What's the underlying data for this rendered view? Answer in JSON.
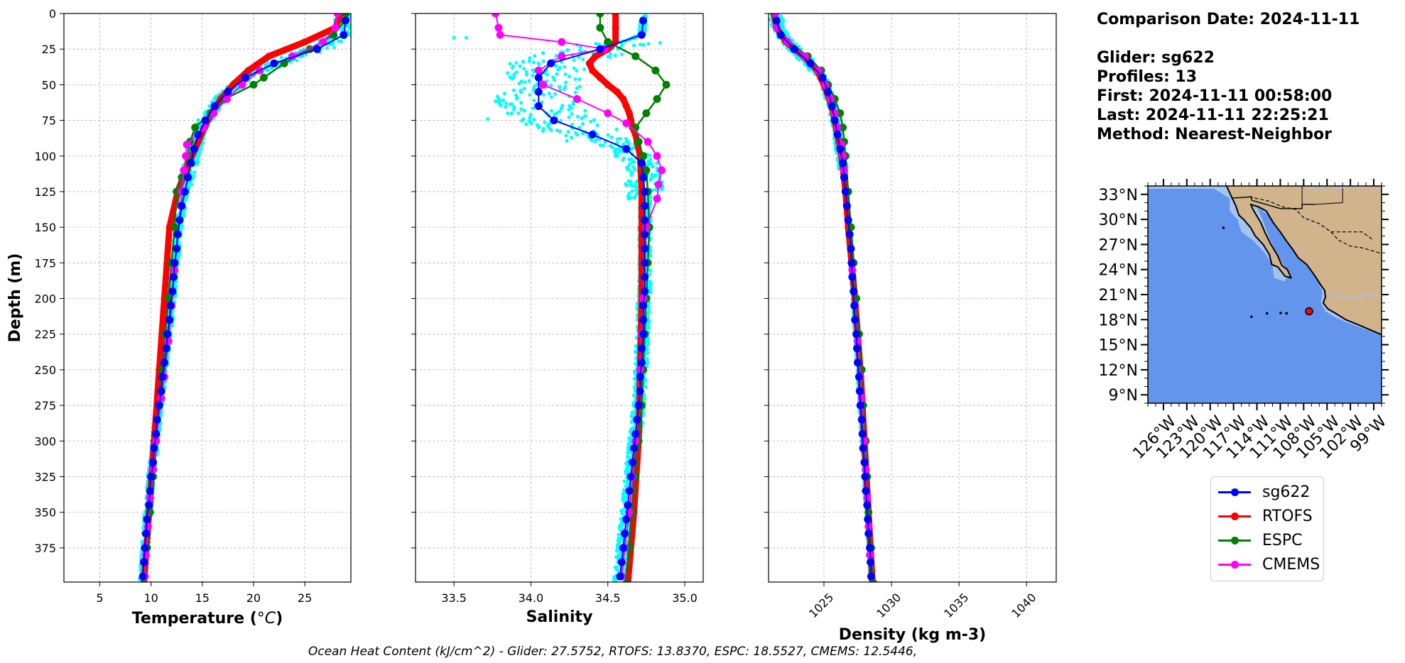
{
  "colors": {
    "sg622": "#0000ff",
    "RTOFS": "#ff0000",
    "ESPC": "#008000",
    "CMEMS": "#ff00ff",
    "raw": "#00ffff",
    "ocean": "#6495ed",
    "shelf": "#a4c4f0",
    "land": "#d2b48c"
  },
  "info": {
    "comparison_date": "Comparison Date: 2024-11-11",
    "glider": "Glider: sg622",
    "profiles": "Profiles: 13",
    "first": "First: 2024-11-11 00:58:00",
    "last": "Last: 2024-11-11 22:25:21",
    "method": "Method: Nearest-Neighbor"
  },
  "footer": "Ocean Heat Content (kJ/cm^2) - Glider: 27.5752,  RTOFS: 13.8370,  ESPC: 18.5527,  CMEMS: 12.5446,",
  "legend": [
    {
      "label": "sg622",
      "color": "#0000ff"
    },
    {
      "label": "RTOFS",
      "color": "#ff0000"
    },
    {
      "label": "ESPC",
      "color": "#008000"
    },
    {
      "label": "CMEMS",
      "color": "#ff00ff"
    }
  ],
  "chart_data": [
    {
      "type": "line",
      "xlabel": "Temperature (°C)",
      "ylabel": "Depth (m)",
      "xlim": [
        1.5,
        29.5
      ],
      "ylim": [
        399,
        0
      ],
      "xticks": [
        5,
        10,
        15,
        20,
        25
      ],
      "yticks": [
        0,
        25,
        50,
        75,
        100,
        125,
        150,
        175,
        200,
        225,
        250,
        275,
        300,
        325,
        350,
        375
      ],
      "grid": true,
      "series": [
        {
          "name": "sg622",
          "depth": [
            5,
            15,
            25,
            35,
            45,
            55,
            65,
            75,
            85,
            95,
            105,
            115,
            125,
            135,
            145,
            155,
            165,
            175,
            185,
            195,
            205,
            215,
            225,
            235,
            245,
            255,
            265,
            275,
            285,
            295,
            305,
            315,
            325,
            335,
            345,
            355,
            365,
            375,
            385,
            395
          ],
          "values": [
            29.0,
            28.8,
            26.2,
            22.0,
            19.2,
            17.5,
            16.2,
            15.3,
            14.6,
            14.2,
            13.9,
            13.6,
            13.3,
            13.0,
            12.8,
            12.6,
            12.5,
            12.3,
            12.2,
            12.1,
            11.9,
            11.8,
            11.6,
            11.5,
            11.3,
            11.1,
            11.0,
            10.8,
            10.6,
            10.5,
            10.3,
            10.2,
            10.0,
            9.9,
            9.8,
            9.6,
            9.5,
            9.4,
            9.3,
            9.2
          ]
        },
        {
          "name": "RTOFS",
          "depth": [
            0,
            10,
            20,
            30,
            40,
            50,
            60,
            70,
            80,
            90,
            100,
            110,
            125,
            150,
            200,
            250,
            300,
            350,
            400
          ],
          "values": [
            28.5,
            28.0,
            25.0,
            21.5,
            19.5,
            18.0,
            16.8,
            15.9,
            15.2,
            14.6,
            14.0,
            13.4,
            12.6,
            11.8,
            11.3,
            10.8,
            10.3,
            9.8,
            9.3
          ]
        },
        {
          "name": "ESPC",
          "depth": [
            0,
            5,
            15,
            25,
            35,
            45,
            50,
            60,
            70,
            80,
            90,
            100,
            115,
            125,
            150,
            175,
            200,
            225,
            250,
            275,
            300,
            325,
            350,
            375,
            400
          ],
          "values": [
            29.0,
            28.9,
            27.8,
            25.5,
            23.0,
            21.0,
            20.0,
            17.2,
            15.8,
            14.3,
            13.8,
            13.6,
            13.0,
            12.5,
            12.3,
            12.0,
            11.7,
            11.4,
            11.1,
            10.8,
            10.5,
            10.2,
            9.9,
            9.6,
            9.3
          ]
        },
        {
          "name": "CMEMS",
          "depth": [
            0,
            10,
            20,
            30,
            40,
            50,
            60,
            70,
            80,
            92,
            100,
            110,
            125,
            135,
            155,
            180,
            205,
            230,
            255,
            270,
            300,
            320,
            340,
            360,
            380,
            395
          ],
          "values": [
            28.2,
            28.0,
            26.8,
            23.8,
            20.6,
            18.9,
            17.4,
            16.1,
            15.2,
            13.5,
            13.4,
            13.2,
            13.0,
            12.9,
            12.6,
            12.3,
            12.0,
            11.7,
            11.3,
            11.0,
            10.5,
            10.2,
            9.9,
            9.7,
            9.5,
            9.4
          ]
        }
      ]
    },
    {
      "type": "line",
      "xlabel": "Salinity",
      "ylim": [
        399,
        0
      ],
      "xlim": [
        33.25,
        35.12
      ],
      "xticks": [
        33.5,
        34.0,
        34.5,
        35.0
      ],
      "grid": true,
      "series": [
        {
          "name": "sg622",
          "depth": [
            5,
            15,
            25,
            35,
            45,
            55,
            65,
            75,
            85,
            95,
            105,
            115,
            125,
            135,
            145,
            155,
            165,
            175,
            185,
            195,
            205,
            215,
            225,
            235,
            245,
            255,
            265,
            275,
            285,
            295,
            305,
            315,
            325,
            335,
            345,
            355,
            365,
            375,
            385,
            395
          ],
          "values": [
            34.73,
            34.72,
            34.45,
            34.13,
            34.05,
            34.05,
            34.05,
            34.15,
            34.4,
            34.62,
            34.72,
            34.73,
            34.74,
            34.74,
            34.74,
            34.74,
            34.74,
            34.74,
            34.74,
            34.74,
            34.73,
            34.73,
            34.73,
            34.72,
            34.72,
            34.71,
            34.71,
            34.7,
            34.69,
            34.68,
            34.67,
            34.66,
            34.65,
            34.64,
            34.63,
            34.62,
            34.61,
            34.6,
            34.59,
            34.58
          ]
        },
        {
          "name": "RTOFS",
          "depth": [
            0,
            10,
            20,
            25,
            30,
            35,
            40,
            45,
            50,
            55,
            60,
            65,
            70,
            75,
            80,
            85,
            90,
            100,
            125,
            150,
            200,
            250,
            300,
            350,
            400
          ],
          "values": [
            34.55,
            34.55,
            34.55,
            34.5,
            34.42,
            34.38,
            34.4,
            34.45,
            34.5,
            34.56,
            34.6,
            34.62,
            34.64,
            34.65,
            34.66,
            34.68,
            34.69,
            34.71,
            34.72,
            34.72,
            34.72,
            34.71,
            34.7,
            34.67,
            34.63
          ]
        },
        {
          "name": "ESPC",
          "depth": [
            0,
            10,
            20,
            30,
            40,
            50,
            60,
            70,
            80,
            90,
            100,
            110,
            125,
            150,
            175,
            200,
            225,
            250,
            275,
            300,
            325,
            350,
            375,
            400
          ],
          "values": [
            34.45,
            34.45,
            34.5,
            34.68,
            34.81,
            34.88,
            34.82,
            34.75,
            34.68,
            34.7,
            34.73,
            34.75,
            34.76,
            34.77,
            34.76,
            34.75,
            34.74,
            34.73,
            34.72,
            34.7,
            34.68,
            34.66,
            34.64,
            34.62
          ]
        },
        {
          "name": "CMEMS",
          "depth": [
            0,
            10,
            15,
            20,
            25,
            30,
            40,
            50,
            60,
            70,
            77,
            90,
            100,
            110,
            120,
            130,
            150,
            175,
            200,
            225,
            250,
            275,
            300,
            325,
            350,
            375,
            395
          ],
          "values": [
            33.77,
            33.79,
            33.8,
            34.2,
            34.48,
            34.2,
            34.05,
            34.08,
            34.3,
            34.5,
            34.62,
            34.76,
            34.82,
            34.85,
            34.83,
            34.82,
            34.75,
            34.74,
            34.73,
            34.72,
            34.71,
            34.7,
            34.68,
            34.66,
            34.64,
            34.61,
            34.59
          ]
        }
      ]
    },
    {
      "type": "line",
      "xlabel": "Density (kg m-3)",
      "ylim": [
        399,
        0
      ],
      "xlim": [
        1020.9,
        1042.2
      ],
      "xticks": [
        1025,
        1030,
        1035,
        1040
      ],
      "grid": true,
      "series": [
        {
          "name": "sg622",
          "depth": [
            5,
            15,
            25,
            35,
            45,
            55,
            65,
            75,
            85,
            95,
            105,
            115,
            125,
            135,
            145,
            155,
            165,
            175,
            185,
            195,
            205,
            215,
            225,
            235,
            245,
            255,
            265,
            275,
            285,
            295,
            305,
            315,
            325,
            335,
            345,
            355,
            365,
            375,
            385,
            395
          ],
          "values": [
            1021.5,
            1021.8,
            1022.8,
            1024.0,
            1024.9,
            1025.3,
            1025.6,
            1025.8,
            1026.0,
            1026.2,
            1026.4,
            1026.5,
            1026.6,
            1026.7,
            1026.8,
            1026.9,
            1027.0,
            1027.05,
            1027.1,
            1027.2,
            1027.25,
            1027.3,
            1027.4,
            1027.45,
            1027.5,
            1027.6,
            1027.65,
            1027.7,
            1027.8,
            1027.85,
            1027.9,
            1028.0,
            1028.05,
            1028.1,
            1028.2,
            1028.25,
            1028.3,
            1028.4,
            1028.45,
            1028.5
          ]
        },
        {
          "name": "RTOFS",
          "depth": [
            0,
            10,
            20,
            30,
            40,
            50,
            60,
            70,
            80,
            90,
            100,
            125,
            150,
            200,
            250,
            300,
            350,
            400
          ],
          "values": [
            1021.3,
            1021.5,
            1022.2,
            1023.5,
            1024.5,
            1025.0,
            1025.4,
            1025.7,
            1025.9,
            1026.1,
            1026.3,
            1026.6,
            1026.8,
            1027.3,
            1027.7,
            1028.0,
            1028.3,
            1028.6
          ]
        },
        {
          "name": "ESPC",
          "depth": [
            0,
            10,
            20,
            30,
            40,
            50,
            60,
            70,
            80,
            90,
            100,
            125,
            150,
            175,
            200,
            225,
            250,
            275,
            300,
            325,
            350,
            375,
            400
          ],
          "values": [
            1021.3,
            1021.5,
            1022.3,
            1023.8,
            1024.8,
            1025.3,
            1025.8,
            1026.2,
            1026.4,
            1026.5,
            1026.6,
            1026.8,
            1027.0,
            1027.2,
            1027.4,
            1027.6,
            1027.8,
            1027.9,
            1028.1,
            1028.2,
            1028.3,
            1028.5,
            1028.7
          ]
        },
        {
          "name": "CMEMS",
          "depth": [
            0,
            10,
            20,
            30,
            40,
            50,
            60,
            70,
            80,
            92,
            100,
            110,
            125,
            135,
            155,
            180,
            205,
            230,
            255,
            270,
            300,
            320,
            340,
            360,
            380,
            395
          ],
          "values": [
            1021.4,
            1021.5,
            1022.3,
            1023.6,
            1024.6,
            1025.1,
            1025.5,
            1025.8,
            1026.0,
            1026.3,
            1026.4,
            1026.5,
            1026.6,
            1026.7,
            1026.9,
            1027.1,
            1027.3,
            1027.5,
            1027.7,
            1027.8,
            1028.0,
            1028.1,
            1028.2,
            1028.3,
            1028.4,
            1028.5
          ]
        }
      ]
    },
    {
      "type": "map",
      "lon_range": [
        -128,
        -98
      ],
      "lat_range": [
        8,
        34
      ],
      "lon_ticks": [
        -126,
        -123,
        -120,
        -117,
        -114,
        -111,
        -108,
        -105,
        -102,
        -99
      ],
      "lat_ticks": [
        33,
        30,
        27,
        24,
        21,
        18,
        15,
        12,
        9
      ],
      "lon_tick_labels": [
        "126°W",
        "123°W",
        "120°W",
        "117°W",
        "114°W",
        "111°W",
        "108°W",
        "105°W",
        "102°W",
        "99°W"
      ],
      "lat_tick_labels": [
        "33°N",
        "30°N",
        "27°N",
        "24°N",
        "21°N",
        "18°N",
        "15°N",
        "12°N",
        "9°N"
      ],
      "glider_position": {
        "lon": -107.3,
        "lat": 19.0
      }
    }
  ]
}
